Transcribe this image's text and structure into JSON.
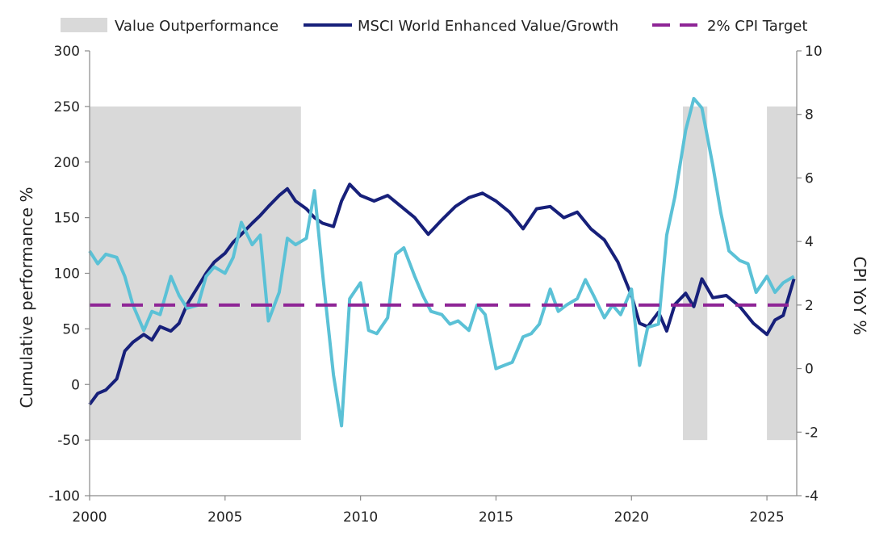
{
  "chart_data": {
    "type": "line",
    "title": "",
    "legend": {
      "placement": "top",
      "items": [
        {
          "label": "Value Outperformance",
          "kind": "area",
          "color": "#d9d9d9"
        },
        {
          "label": "MSCI World Enhanced Value/Growth",
          "kind": "line",
          "color": "#17207a"
        },
        {
          "label": "2% CPI Target",
          "kind": "dashed",
          "color": "#8e2596"
        }
      ]
    },
    "x_axis": {
      "ticks": [
        "2000",
        "2005",
        "2010",
        "2015",
        "2020",
        "2025"
      ],
      "range": [
        2000,
        2026.1
      ]
    },
    "y_left": {
      "label": "Cumulative performance %",
      "range": [
        -100,
        300
      ],
      "ticks": [
        "-100",
        "-50",
        "0",
        "50",
        "100",
        "150",
        "200",
        "250",
        "300"
      ]
    },
    "y_right": {
      "label": "CPI YoY %",
      "range": [
        -4,
        10
      ],
      "ticks": [
        "-4",
        "-2",
        "0",
        "2",
        "4",
        "6",
        "8",
        "10"
      ]
    },
    "grid": false,
    "shaded_periods": [
      {
        "start": 2000.0,
        "end": 2007.8
      },
      {
        "start": 2021.9,
        "end": 2022.8
      },
      {
        "start": 2025.0,
        "end": 2026.1
      }
    ],
    "shaded_band_left_units": [
      -50,
      250
    ],
    "series": [
      {
        "name": "MSCI World Enhanced Value/Growth",
        "axis": "left",
        "color": "#17207a",
        "x": [
          2000.0,
          2000.3,
          2000.6,
          2001.0,
          2001.3,
          2001.6,
          2002.0,
          2002.3,
          2002.6,
          2003.0,
          2003.3,
          2003.6,
          2004.0,
          2004.3,
          2004.6,
          2005.0,
          2005.3,
          2005.6,
          2006.0,
          2006.3,
          2006.6,
          2007.0,
          2007.3,
          2007.6,
          2008.0,
          2008.3,
          2008.6,
          2009.0,
          2009.3,
          2009.6,
          2010.0,
          2010.5,
          2011.0,
          2011.5,
          2012.0,
          2012.5,
          2013.0,
          2013.5,
          2014.0,
          2014.5,
          2015.0,
          2015.5,
          2016.0,
          2016.5,
          2017.0,
          2017.5,
          2018.0,
          2018.5,
          2019.0,
          2019.5,
          2020.0,
          2020.3,
          2020.6,
          2021.0,
          2021.3,
          2021.6,
          2022.0,
          2022.3,
          2022.6,
          2023.0,
          2023.5,
          2024.0,
          2024.5,
          2025.0,
          2025.3,
          2025.6,
          2026.0
        ],
        "values": [
          -18,
          -8,
          -5,
          5,
          30,
          38,
          45,
          40,
          52,
          48,
          55,
          72,
          88,
          100,
          110,
          118,
          128,
          135,
          145,
          152,
          160,
          170,
          176,
          165,
          158,
          150,
          145,
          142,
          165,
          180,
          170,
          165,
          170,
          160,
          150,
          135,
          148,
          160,
          168,
          172,
          165,
          155,
          140,
          158,
          160,
          150,
          155,
          140,
          130,
          110,
          80,
          55,
          52,
          65,
          48,
          72,
          82,
          70,
          95,
          78,
          80,
          70,
          55,
          45,
          58,
          62,
          95
        ]
      },
      {
        "name": "CPI YoY",
        "axis": "right",
        "color": "#5bc1d6",
        "x": [
          2000.0,
          2000.3,
          2000.6,
          2001.0,
          2001.3,
          2001.6,
          2002.0,
          2002.3,
          2002.6,
          2003.0,
          2003.3,
          2003.6,
          2004.0,
          2004.3,
          2004.6,
          2005.0,
          2005.3,
          2005.6,
          2006.0,
          2006.3,
          2006.6,
          2007.0,
          2007.3,
          2007.6,
          2008.0,
          2008.3,
          2008.6,
          2009.0,
          2009.3,
          2009.6,
          2010.0,
          2010.3,
          2010.6,
          2011.0,
          2011.3,
          2011.6,
          2012.0,
          2012.3,
          2012.6,
          2013.0,
          2013.3,
          2013.6,
          2014.0,
          2014.3,
          2014.6,
          2015.0,
          2015.3,
          2015.6,
          2016.0,
          2016.3,
          2016.6,
          2017.0,
          2017.3,
          2017.6,
          2018.0,
          2018.3,
          2018.6,
          2019.0,
          2019.3,
          2019.6,
          2020.0,
          2020.3,
          2020.6,
          2021.0,
          2021.3,
          2021.6,
          2022.0,
          2022.3,
          2022.6,
          2023.0,
          2023.3,
          2023.6,
          2024.0,
          2024.3,
          2024.6,
          2025.0,
          2025.3,
          2025.6,
          2026.0
        ],
        "values": [
          3.7,
          3.3,
          3.6,
          3.5,
          2.9,
          2.0,
          1.2,
          1.8,
          1.7,
          2.9,
          2.3,
          1.9,
          2.0,
          2.9,
          3.2,
          3.0,
          3.5,
          4.6,
          3.9,
          4.2,
          1.5,
          2.4,
          4.1,
          3.9,
          4.1,
          5.6,
          3.0,
          -0.2,
          -1.8,
          2.2,
          2.7,
          1.2,
          1.1,
          1.6,
          3.6,
          3.8,
          2.9,
          2.3,
          1.8,
          1.7,
          1.4,
          1.5,
          1.2,
          2.0,
          1.7,
          0.0,
          0.1,
          0.2,
          1.0,
          1.1,
          1.4,
          2.5,
          1.8,
          2.0,
          2.2,
          2.8,
          2.3,
          1.6,
          2.0,
          1.7,
          2.5,
          0.1,
          1.3,
          1.4,
          4.2,
          5.4,
          7.5,
          8.5,
          8.2,
          6.4,
          4.9,
          3.7,
          3.4,
          3.3,
          2.4,
          2.9,
          2.4,
          2.7,
          2.9
        ]
      },
      {
        "name": "2% CPI Target",
        "axis": "right",
        "color": "#8e2596",
        "style": "dashed",
        "x": [
          2000.0,
          2026.1
        ],
        "values": [
          2,
          2
        ]
      }
    ]
  }
}
